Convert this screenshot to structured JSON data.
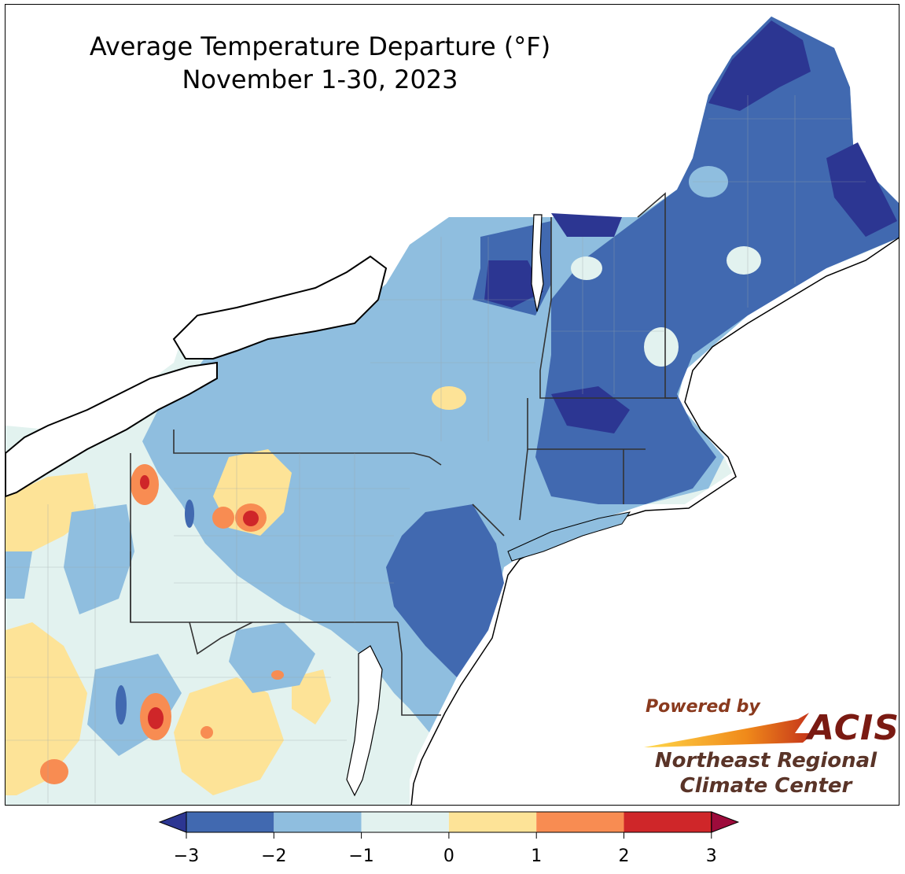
{
  "title": {
    "line1": "Average Temperature Departure (°F)",
    "line2": "November 1-30, 2023"
  },
  "logo": {
    "powered_by": "Powered by",
    "acis": "ACIS",
    "org_line1": "Northeast Regional",
    "org_line2": "Climate Center"
  },
  "legend": {
    "ticks": [
      "−3",
      "−2",
      "−1",
      "0",
      "1",
      "2",
      "3"
    ],
    "bins": [
      {
        "range": "< -3",
        "color": "#2c3692"
      },
      {
        "range": "-3 to -2",
        "color": "#4169b0"
      },
      {
        "range": "-2 to -1",
        "color": "#8fbedf"
      },
      {
        "range": "-1 to 0",
        "color": "#e2f2ef"
      },
      {
        "range": "0 to 1",
        "color": "#fde397"
      },
      {
        "range": "1 to 2",
        "color": "#f88c52"
      },
      {
        "range": "2 to 3",
        "color": "#cf2629"
      },
      {
        "range": "> 3",
        "color": "#9d0b3b"
      }
    ]
  },
  "colors": {
    "very_cold": "#2c3692",
    "cold": "#4169b0",
    "cool": "#8fbedf",
    "near_normal_cool": "#e2f2ef",
    "near_normal_warm": "#fde397",
    "warm": "#f88c52",
    "hot": "#cf2629",
    "very_hot": "#9d0b3b",
    "water": "#ffffff",
    "borders": "#222222"
  }
}
